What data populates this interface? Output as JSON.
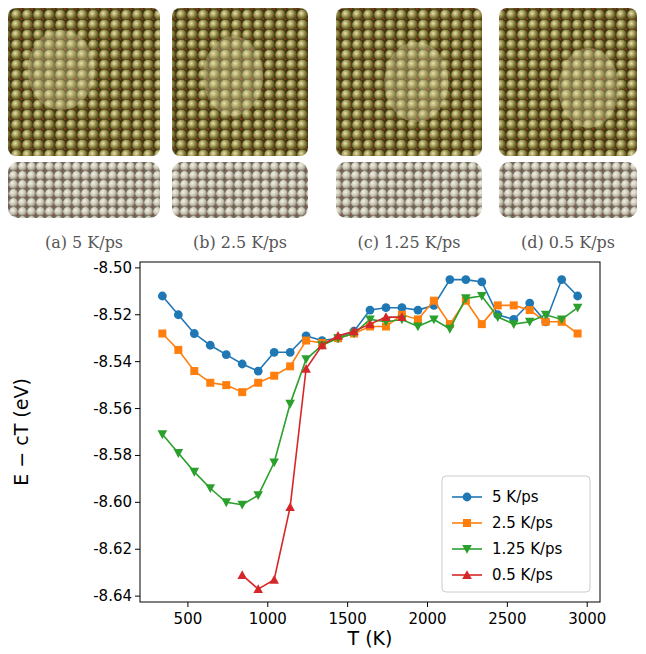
{
  "panels": [
    {
      "caption": "(a) 5 K/ps"
    },
    {
      "caption": "(b) 2.5 K/ps"
    },
    {
      "caption": "(c) 1.25 K/ps"
    },
    {
      "caption": "(d) 0.5 K/ps"
    }
  ],
  "chart_data": {
    "type": "line",
    "x_label": "T (K)",
    "y_label": "E − cT (eV)",
    "xlim": [
      200,
      3080
    ],
    "ylim": [
      -8.6425,
      -8.4975
    ],
    "xticks": [
      500,
      1000,
      1500,
      2000,
      2500,
      3000
    ],
    "yticks": [
      -8.64,
      -8.62,
      -8.6,
      -8.58,
      -8.56,
      -8.54,
      -8.52,
      -8.5
    ],
    "legend": "lower right",
    "grid": false,
    "series": [
      {
        "name": "5 K/ps",
        "color": "#1f77b4",
        "marker": "circle",
        "x": [
          340,
          440,
          540,
          640,
          740,
          840,
          940,
          1040,
          1140,
          1240,
          1340,
          1440,
          1540,
          1640,
          1740,
          1840,
          1940,
          2040,
          2140,
          2240,
          2340,
          2440,
          2540,
          2640,
          2740,
          2840,
          2940
        ],
        "values": [
          -8.512,
          -8.52,
          -8.528,
          -8.533,
          -8.537,
          -8.541,
          -8.544,
          -8.536,
          -8.536,
          -8.529,
          -8.531,
          -8.53,
          -8.527,
          -8.518,
          -8.517,
          -8.517,
          -8.518,
          -8.516,
          -8.505,
          -8.505,
          -8.506,
          -8.52,
          -8.522,
          -8.515,
          -8.523,
          -8.505,
          -8.512
        ]
      },
      {
        "name": "2.5 K/ps",
        "color": "#ff7f0e",
        "marker": "square",
        "x": [
          340,
          440,
          540,
          640,
          740,
          840,
          940,
          1040,
          1140,
          1240,
          1340,
          1440,
          1540,
          1640,
          1740,
          1840,
          1940,
          2040,
          2140,
          2240,
          2340,
          2440,
          2540,
          2640,
          2740,
          2840,
          2940
        ],
        "values": [
          -8.528,
          -8.535,
          -8.544,
          -8.549,
          -8.55,
          -8.553,
          -8.549,
          -8.546,
          -8.542,
          -8.531,
          -8.532,
          -8.53,
          -8.528,
          -8.525,
          -8.525,
          -8.52,
          -8.522,
          -8.514,
          -8.524,
          -8.514,
          -8.524,
          -8.516,
          -8.516,
          -8.518,
          -8.523,
          -8.523,
          -8.528
        ]
      },
      {
        "name": "1.25 K/ps",
        "color": "#2ca02c",
        "marker": "triangle-down",
        "x": [
          340,
          440,
          540,
          640,
          740,
          840,
          940,
          1040,
          1140,
          1240,
          1340,
          1440,
          1540,
          1640,
          1740,
          1840,
          1940,
          2040,
          2140,
          2240,
          2340,
          2440,
          2540,
          2640,
          2740,
          2840,
          2940
        ],
        "values": [
          -8.571,
          -8.579,
          -8.587,
          -8.594,
          -8.6,
          -8.601,
          -8.597,
          -8.583,
          -8.558,
          -8.539,
          -8.533,
          -8.53,
          -8.528,
          -8.522,
          -8.523,
          -8.522,
          -8.525,
          -8.522,
          -8.526,
          -8.513,
          -8.512,
          -8.521,
          -8.524,
          -8.523,
          -8.52,
          -8.522,
          -8.517
        ]
      },
      {
        "name": "0.5 K/ps",
        "color": "#d62728",
        "marker": "triangle-up",
        "x": [
          840,
          940,
          1040,
          1140,
          1240,
          1340,
          1440,
          1540,
          1640,
          1740,
          1840
        ],
        "values": [
          -8.631,
          -8.637,
          -8.633,
          -8.602,
          -8.543,
          -8.533,
          -8.529,
          -8.527,
          -8.524,
          -8.521,
          -8.521
        ]
      }
    ]
  }
}
